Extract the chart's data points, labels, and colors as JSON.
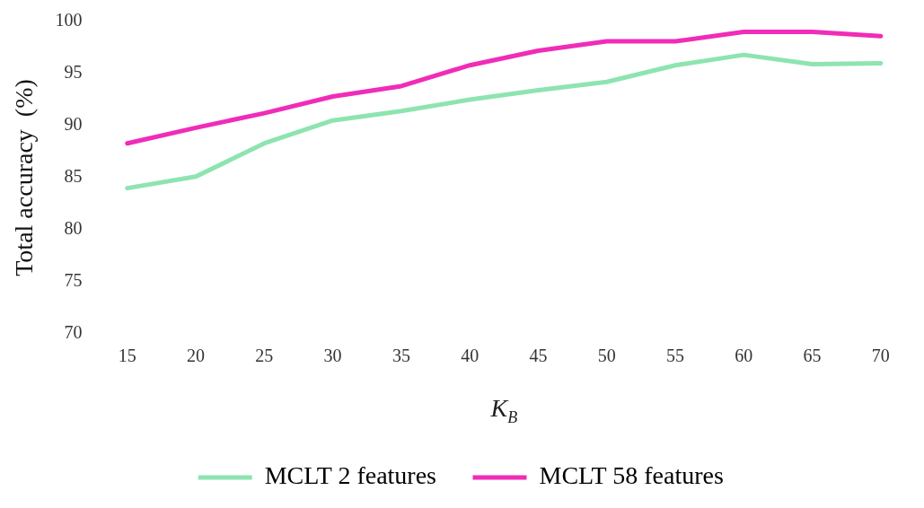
{
  "chart_data": {
    "type": "line",
    "xlabel": "K$_{B}$",
    "ylabel": "Total accuracy  (%)",
    "categories": [
      "15",
      "20",
      "25",
      "30",
      "35",
      "40",
      "45",
      "50",
      "55",
      "60",
      "65",
      "70"
    ],
    "series": [
      {
        "name": "MCLT 2 features",
        "color": "#8ee4b0",
        "values": [
          84.0,
          85.1,
          88.3,
          90.5,
          91.4,
          92.5,
          93.4,
          94.2,
          95.8,
          96.8,
          95.9,
          96.0
        ]
      },
      {
        "name": "MCLT 58 features",
        "color": "#f02cb8",
        "values": [
          88.3,
          89.8,
          91.2,
          92.8,
          93.8,
          95.8,
          97.2,
          98.1,
          98.1,
          99.0,
          99.0,
          98.6
        ]
      }
    ],
    "ylim": [
      70,
      100
    ],
    "yticks": [
      70,
      75,
      80,
      85,
      90,
      95,
      100
    ],
    "grid": false,
    "legend": "bottom",
    "marker": "none",
    "line_style": "solid"
  }
}
